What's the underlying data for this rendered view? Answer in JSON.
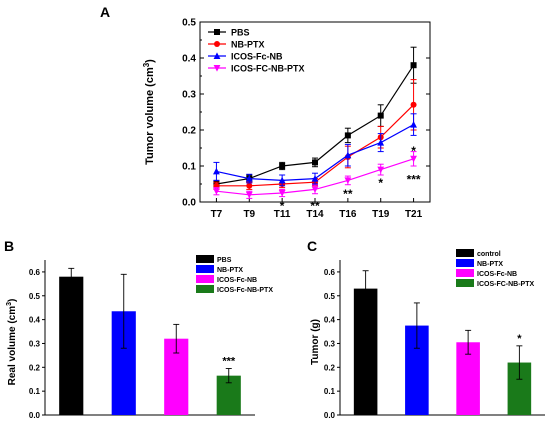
{
  "panels": [
    "A",
    "B",
    "C"
  ],
  "chart_data": [
    {
      "panel": "A",
      "type": "line",
      "xlabel": "",
      "ylabel": "Tumor volume (cm3)",
      "ylabel_main": "Tumor volume (cm",
      "ylabel_sup": "3",
      "ylabel_close": ")",
      "categories": [
        "T7",
        "T9",
        "T11",
        "T14",
        "T16",
        "T19",
        "T21"
      ],
      "yticks": [
        "0.0",
        "0.1",
        "0.2",
        "0.3",
        "0.4",
        "0.5"
      ],
      "ylim": [
        0,
        0.5
      ],
      "grid": false,
      "legend_position": "top-left",
      "series": [
        {
          "name": "PBS",
          "color": "#000000",
          "marker": "square",
          "values": [
            0.05,
            0.065,
            0.1,
            0.11,
            0.185,
            0.24,
            0.38
          ],
          "errors": [
            0.01,
            0.01,
            0.01,
            0.012,
            0.02,
            0.03,
            0.05
          ]
        },
        {
          "name": "NB-PTX",
          "color": "#ff0000",
          "marker": "circle",
          "values": [
            0.045,
            0.045,
            0.05,
            0.055,
            0.125,
            0.18,
            0.27
          ],
          "errors": [
            0.01,
            0.01,
            0.01,
            0.01,
            0.03,
            0.03,
            0.07
          ]
        },
        {
          "name": "ICOS-Fc-NB",
          "color": "#0000ff",
          "marker": "triangle",
          "values": [
            0.085,
            0.065,
            0.06,
            0.065,
            0.13,
            0.165,
            0.215
          ],
          "errors": [
            0.025,
            0.012,
            0.015,
            0.015,
            0.03,
            0.025,
            0.03
          ]
        },
        {
          "name": "ICOS-FC-NB-PTX",
          "color": "#ff00ff",
          "marker": "triangle-down",
          "values": [
            0.03,
            0.02,
            0.025,
            0.035,
            0.06,
            0.09,
            0.12
          ],
          "errors": [
            0.01,
            0.01,
            0.01,
            0.012,
            0.012,
            0.015,
            0.02
          ]
        }
      ],
      "annotations": [
        {
          "text": "*",
          "x": "T11",
          "y": -0.008
        },
        {
          "text": "**",
          "x": "T14",
          "y": -0.008
        },
        {
          "text": "**",
          "x": "T16",
          "y": 0.025
        },
        {
          "text": "*",
          "x": "T19",
          "y": 0.055
        },
        {
          "text": "*",
          "x": "T21",
          "y": 0.145
        },
        {
          "text": "***",
          "x": "T21",
          "y": 0.065
        }
      ]
    },
    {
      "panel": "B",
      "type": "bar",
      "ylabel": "Real volume (cm3)",
      "ylabel_main": "Real volume (cm",
      "ylabel_sup": "3",
      "ylabel_close": ")",
      "yticks": [
        "0.0",
        "0.1",
        "0.2",
        "0.3",
        "0.4",
        "0.5",
        "0.6"
      ],
      "ylim": [
        0,
        0.65
      ],
      "grid": false,
      "legend_position": "top-right",
      "categories": [
        "PBS",
        "NB-PTX",
        "ICOS-Fc-NB",
        "ICOS-Fc-NB-PTX"
      ],
      "values": [
        0.58,
        0.435,
        0.32,
        0.165
      ],
      "errors": [
        0.035,
        0.155,
        0.06,
        0.03
      ],
      "colors": [
        "#000000",
        "#0000ff",
        "#ff00ff",
        "#1a7a1a"
      ],
      "annotations": [
        {
          "text": "***",
          "category": "ICOS-Fc-NB-PTX"
        }
      ]
    },
    {
      "panel": "C",
      "type": "bar",
      "ylabel": "Tumor (g)",
      "yticks": [
        "0.0",
        "0.1",
        "0.2",
        "0.3",
        "0.4",
        "0.5",
        "0.6"
      ],
      "ylim": [
        0,
        0.65
      ],
      "grid": false,
      "legend_position": "top-right",
      "categories": [
        "control",
        "NB-PTX",
        "ICOS-Fc-NB",
        "ICOS-FC-NB-PTX"
      ],
      "values": [
        0.53,
        0.375,
        0.305,
        0.22
      ],
      "errors": [
        0.075,
        0.095,
        0.05,
        0.07
      ],
      "colors": [
        "#000000",
        "#0000ff",
        "#ff00ff",
        "#1a7a1a"
      ],
      "annotations": [
        {
          "text": "*",
          "category": "ICOS-FC-NB-PTX"
        }
      ]
    }
  ]
}
